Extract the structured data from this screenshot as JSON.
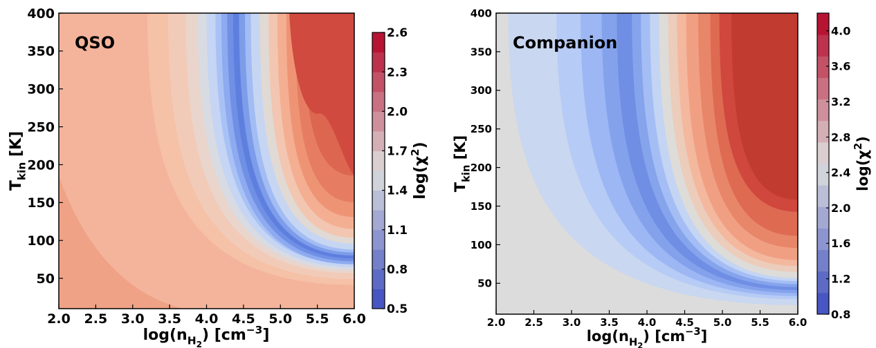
{
  "chart_data": [
    {
      "type": "contour",
      "title": "QSO",
      "xlabel": [
        "log(n",
        "H",
        "2",
        ") [cm",
        "−3",
        "]"
      ],
      "ylabel": [
        "T",
        "kin",
        " [K]"
      ],
      "colorbar_label": [
        "log(χ",
        "2",
        ")"
      ],
      "xlim": [
        2,
        6
      ],
      "xticks": [
        {
          "value": 2,
          "label": "2.0"
        },
        2.5,
        {
          "value": 3,
          "label": "3.0"
        },
        3.5,
        {
          "value": 4,
          "label": "4.0"
        },
        4.5,
        {
          "value": 5,
          "label": "5.0"
        },
        5.5,
        {
          "value": 6,
          "label": "6.0"
        }
      ],
      "ylim": [
        10,
        400
      ],
      "yticks": [
        50,
        100,
        150,
        200,
        250,
        300,
        350,
        400
      ],
      "clim": [
        0.5,
        2.6
      ],
      "cticks": [
        0.5,
        0.8,
        1.1,
        1.4,
        1.7,
        {
          "value": 2,
          "label": "2.0"
        },
        2.3,
        2.6
      ]
    },
    {
      "type": "contour",
      "title": "Companion",
      "xlabel": [
        "log(n",
        "H",
        "2",
        ") [cm",
        "−3",
        "]"
      ],
      "ylabel": [
        "T",
        "kin",
        " [K]"
      ],
      "colorbar_label": [
        "log(χ",
        "2",
        ")"
      ],
      "xlim": [
        2,
        6
      ],
      "xticks": [
        {
          "value": 2,
          "label": "2.0"
        },
        2.5,
        {
          "value": 3,
          "label": "3.0"
        },
        3.5,
        {
          "value": 4,
          "label": "4.0"
        },
        4.5,
        {
          "value": 5,
          "label": "5.0"
        },
        5.5,
        {
          "value": 6,
          "label": "6.0"
        }
      ],
      "ylim": [
        10,
        400
      ],
      "yticks": [
        50,
        100,
        150,
        200,
        250,
        300,
        350,
        400
      ],
      "clim": [
        0.8,
        4.2
      ],
      "cticks": [
        0.8,
        1.2,
        1.6,
        {
          "value": 2,
          "label": "2.0"
        },
        2.4,
        2.8,
        3.2,
        3.6,
        {
          "value": 4,
          "label": "4.0"
        }
      ]
    }
  ]
}
